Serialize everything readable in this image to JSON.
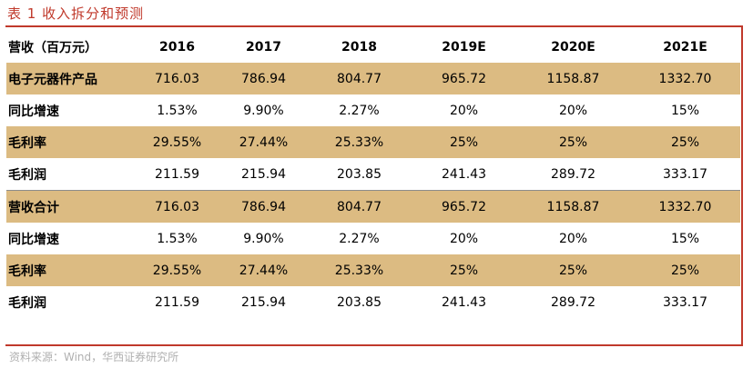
{
  "title": "表 1 收入拆分和预测",
  "source": "资料来源：Wind，华西证券研究所",
  "table": {
    "headers": [
      "营收（百万元）",
      "2016",
      "2017",
      "2018",
      "2019E",
      "2020E",
      "2021E"
    ],
    "rows": [
      {
        "label": "电子元器件产品",
        "values": [
          "716.03",
          "786.94",
          "804.77",
          "965.72",
          "1158.87",
          "1332.70"
        ]
      },
      {
        "label": "同比增速",
        "values": [
          "1.53%",
          "9.90%",
          "2.27%",
          "20%",
          "20%",
          "15%"
        ]
      },
      {
        "label": "毛利率",
        "values": [
          "29.55%",
          "27.44%",
          "25.33%",
          "25%",
          "25%",
          "25%"
        ]
      },
      {
        "label": "毛利润",
        "values": [
          "211.59",
          "215.94",
          "203.85",
          "241.43",
          "289.72",
          "333.17"
        ]
      },
      {
        "label": "营收合计",
        "values": [
          "716.03",
          "786.94",
          "804.77",
          "965.72",
          "1158.87",
          "1332.70"
        ]
      },
      {
        "label": "同比增速",
        "values": [
          "1.53%",
          "9.90%",
          "2.27%",
          "20%",
          "20%",
          "15%"
        ]
      },
      {
        "label": "毛利率",
        "values": [
          "29.55%",
          "27.44%",
          "25.33%",
          "25%",
          "25%",
          "25%"
        ]
      },
      {
        "label": "毛利润",
        "values": [
          "211.59",
          "215.94",
          "203.85",
          "241.43",
          "289.72",
          "333.17"
        ]
      }
    ]
  },
  "colors": {
    "accent": "#c0392b",
    "shade": "#dcbb82",
    "source_text": "#b0b0b0"
  }
}
